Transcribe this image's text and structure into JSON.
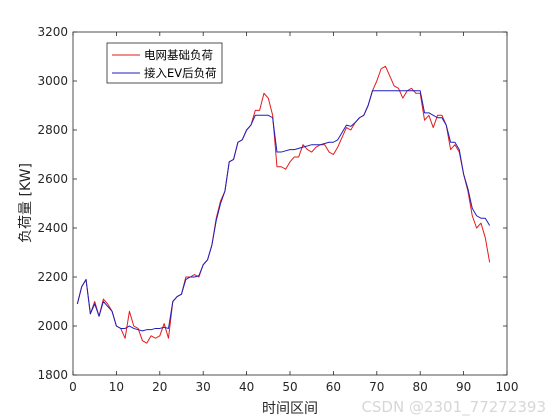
{
  "chart_data": {
    "type": "line",
    "xlabel": "时间区间",
    "ylabel": "负荷量 [KW]",
    "xlim": [
      0,
      100
    ],
    "ylim": [
      1800,
      3200
    ],
    "xticks": [
      "0",
      "10",
      "20",
      "30",
      "40",
      "50",
      "60",
      "70",
      "80",
      "90",
      "100"
    ],
    "yticks": [
      "1800",
      "2000",
      "2200",
      "2400",
      "2600",
      "2800",
      "3000",
      "3200"
    ],
    "legend_position": "top-left",
    "grid": false,
    "series": [
      {
        "name": "电网基础负荷",
        "color": "#e31a1c",
        "x": [
          1,
          2,
          3,
          4,
          5,
          6,
          7,
          8,
          9,
          10,
          11,
          12,
          13,
          14,
          15,
          16,
          17,
          18,
          19,
          20,
          21,
          22,
          23,
          24,
          25,
          26,
          27,
          28,
          29,
          30,
          31,
          32,
          33,
          34,
          35,
          36,
          37,
          38,
          39,
          40,
          41,
          42,
          43,
          44,
          45,
          46,
          47,
          48,
          49,
          50,
          51,
          52,
          53,
          54,
          55,
          56,
          57,
          58,
          59,
          60,
          61,
          62,
          63,
          64,
          65,
          66,
          67,
          68,
          69,
          70,
          71,
          72,
          73,
          74,
          75,
          76,
          77,
          78,
          79,
          80,
          81,
          82,
          83,
          84,
          85,
          86,
          87,
          88,
          89,
          90,
          91,
          92,
          93,
          94,
          95,
          96
        ],
        "y": [
          2090,
          2160,
          2190,
          2050,
          2100,
          2040,
          2110,
          2090,
          2060,
          2000,
          1990,
          1950,
          2060,
          2000,
          1990,
          1940,
          1930,
          1960,
          1950,
          1960,
          2010,
          1950,
          2100,
          2120,
          2130,
          2200,
          2200,
          2210,
          2200,
          2250,
          2270,
          2330,
          2440,
          2510,
          2550,
          2670,
          2680,
          2750,
          2760,
          2800,
          2820,
          2880,
          2880,
          2950,
          2930,
          2860,
          2650,
          2650,
          2640,
          2670,
          2690,
          2690,
          2740,
          2720,
          2710,
          2730,
          2740,
          2740,
          2710,
          2700,
          2730,
          2770,
          2810,
          2800,
          2830,
          2850,
          2860,
          2900,
          2960,
          3000,
          3050,
          3060,
          3020,
          2980,
          2970,
          2930,
          2960,
          2970,
          2950,
          2950,
          2840,
          2860,
          2810,
          2860,
          2860,
          2820,
          2720,
          2740,
          2710,
          2620,
          2550,
          2450,
          2400,
          2420,
          2360,
          2260
        ]
      },
      {
        "name": "接入EV后负荷",
        "color": "#1f1fbf",
        "x": [
          1,
          2,
          3,
          4,
          5,
          6,
          7,
          8,
          9,
          10,
          11,
          12,
          13,
          14,
          15,
          16,
          17,
          18,
          19,
          20,
          21,
          22,
          23,
          24,
          25,
          26,
          27,
          28,
          29,
          30,
          31,
          32,
          33,
          34,
          35,
          36,
          37,
          38,
          39,
          40,
          41,
          42,
          43,
          44,
          45,
          46,
          47,
          48,
          49,
          50,
          51,
          52,
          53,
          54,
          55,
          56,
          57,
          58,
          59,
          60,
          61,
          62,
          63,
          64,
          65,
          66,
          67,
          68,
          69,
          70,
          71,
          72,
          73,
          74,
          75,
          76,
          77,
          78,
          79,
          80,
          81,
          82,
          83,
          84,
          85,
          86,
          87,
          88,
          89,
          90,
          91,
          92,
          93,
          94,
          95,
          96
        ],
        "y": [
          2090,
          2160,
          2190,
          2050,
          2090,
          2040,
          2100,
          2080,
          2060,
          2000,
          1990,
          1990,
          2000,
          1990,
          1985,
          1980,
          1985,
          1985,
          1990,
          1990,
          1995,
          1990,
          2100,
          2120,
          2130,
          2190,
          2200,
          2200,
          2205,
          2250,
          2270,
          2330,
          2430,
          2500,
          2550,
          2670,
          2680,
          2750,
          2760,
          2800,
          2820,
          2860,
          2860,
          2860,
          2860,
          2850,
          2710,
          2710,
          2715,
          2720,
          2720,
          2725,
          2730,
          2735,
          2740,
          2740,
          2740,
          2745,
          2750,
          2750,
          2760,
          2790,
          2820,
          2815,
          2830,
          2850,
          2860,
          2900,
          2960,
          2960,
          2960,
          2960,
          2960,
          2960,
          2960,
          2960,
          2960,
          2960,
          2960,
          2960,
          2870,
          2870,
          2860,
          2850,
          2850,
          2820,
          2750,
          2750,
          2720,
          2620,
          2560,
          2480,
          2450,
          2440,
          2440,
          2410
        ]
      }
    ]
  },
  "watermark": "CSDN @2301_77272393"
}
